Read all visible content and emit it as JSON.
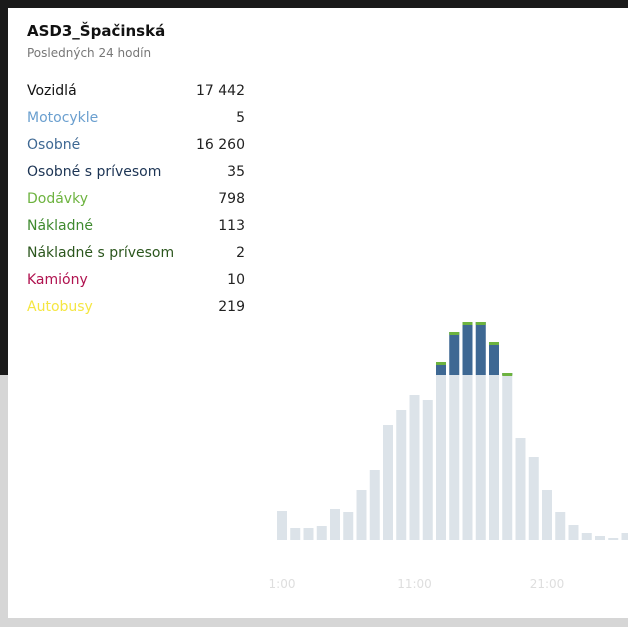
{
  "header": {
    "title": "ASD3_Špačinská",
    "subtitle": "Posledných 24 hodín"
  },
  "rows": [
    {
      "name": "Vozidlá",
      "value": "17 442",
      "color": "#111111"
    },
    {
      "name": "Motocykle",
      "value": "5",
      "color": "#6a9fcf"
    },
    {
      "name": "Osobné",
      "value": "16 260",
      "color": "#3e6893"
    },
    {
      "name": "Osobné s prívesom",
      "value": "35",
      "color": "#1c3454"
    },
    {
      "name": "Dodávky",
      "value": "798",
      "color": "#6db33f"
    },
    {
      "name": "Nákladné",
      "value": "113",
      "color": "#3f8a2f"
    },
    {
      "name": "Nákladné s prívesom",
      "value": "2",
      "color": "#2b561d"
    },
    {
      "name": "Kamióny",
      "value": "10",
      "color": "#b0124f"
    },
    {
      "name": "Autobusy",
      "value": "219",
      "color": "#f5e642"
    }
  ],
  "chart_data": {
    "type": "bar",
    "categories": [
      "1:00",
      null,
      null,
      null,
      null,
      null,
      null,
      null,
      null,
      null,
      "11:00",
      null,
      null,
      null,
      null,
      null,
      null,
      null,
      null,
      null,
      "21:00",
      null,
      null,
      null,
      null,
      null,
      null
    ],
    "values": [
      29,
      12,
      12,
      14,
      31,
      28,
      50,
      70,
      115,
      130,
      145,
      140,
      178,
      208,
      218,
      218,
      198,
      167,
      102,
      83,
      50,
      28,
      15,
      7,
      4,
      2,
      7
    ],
    "ylim": [
      0,
      240
    ],
    "color": "#dce3e9",
    "highlight_color": "#3e6893",
    "cap_color": "#6db33f"
  }
}
